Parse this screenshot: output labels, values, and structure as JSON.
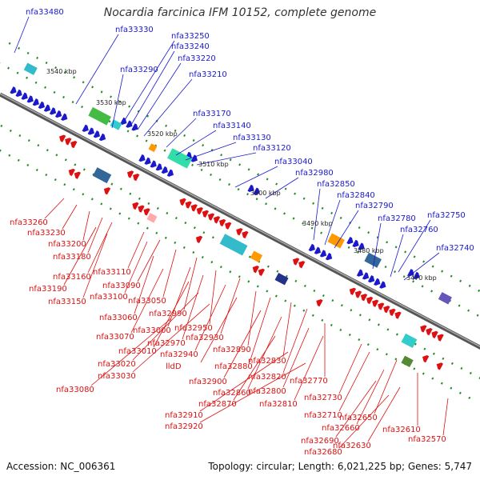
{
  "title": "Nocardia farcinica IFM 10152, complete genome",
  "accession": "Accession: NC_006361",
  "stats": "Topology: circular; Length: 6,021,225 bp; Genes: 5,747",
  "colors": {
    "forward": "#1a1acc",
    "reverse": "#dd1111",
    "axis": "#777777",
    "dot": "#2a8a2a"
  },
  "scale_labels": [
    "3540 kbp",
    "3530 kbp",
    "3520 kbp",
    "3510 kbp",
    "3500 kbp",
    "3490 kbp",
    "3480 kbp",
    "3470 kbp"
  ],
  "top_labels": [
    "nfa33480",
    "nfa33330",
    "nfa33290",
    "nfa33250",
    "nfa33240",
    "nfa33220",
    "nfa33210",
    "nfa33170",
    "nfa33140",
    "nfa33130",
    "nfa33120",
    "nfa33040",
    "nfa32980",
    "nfa32850",
    "nfa32840",
    "nfa32790",
    "nfa32780",
    "nfa32760",
    "nfa32750",
    "nfa32740"
  ],
  "bottom_labels": [
    "nfa33260",
    "nfa33230",
    "nfa33200",
    "nfa33180",
    "nfa33160",
    "nfa33190",
    "nfa33110",
    "nfa33150",
    "nfa33090",
    "nfa33100",
    "nfa33050",
    "nfa33060",
    "nfa32990",
    "nfa33070",
    "nfa33000",
    "nfa32950",
    "nfa32970",
    "nfa33010",
    "nfa32930",
    "nfa32940",
    "nfa33020",
    "nfa32890",
    "lldD",
    "nfa33030",
    "nfa32880",
    "nfa32830",
    "nfa32900",
    "nfa32820",
    "nfa32860",
    "nfa33080",
    "nfa32770",
    "nfa32800",
    "nfa32870",
    "nfa32810",
    "nfa32730",
    "nfa32910",
    "nfa32710",
    "nfa32650",
    "nfa32920",
    "nfa32660",
    "nfa32610",
    "nfa32690",
    "nfa32630",
    "nfa32680",
    "nfa32570"
  ]
}
